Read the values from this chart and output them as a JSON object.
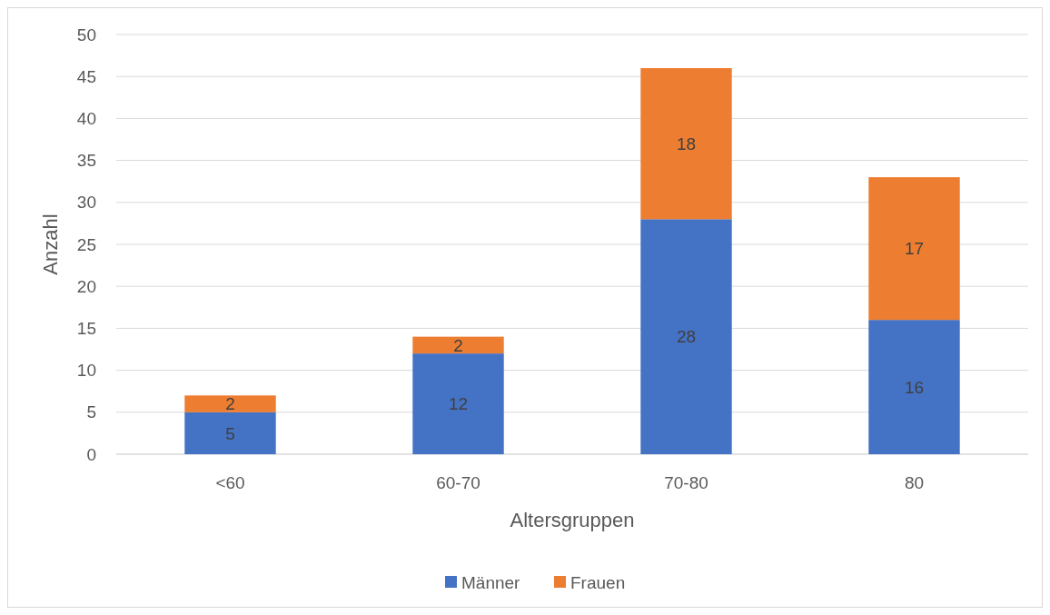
{
  "chart_data": {
    "type": "bar",
    "stacked": true,
    "xlabel": "Altersgruppen",
    "ylabel": "Anzahl",
    "categories": [
      "<60",
      "60-70",
      "70-80",
      "80"
    ],
    "series": [
      {
        "name": "Männer",
        "color": "#4472c4",
        "values": [
          5,
          12,
          28,
          16
        ]
      },
      {
        "name": "Frauen",
        "color": "#ed7d31",
        "values": [
          2,
          2,
          18,
          17
        ]
      }
    ],
    "ylim": [
      0,
      50
    ],
    "yticks": [
      0,
      5,
      10,
      15,
      20,
      25,
      30,
      35,
      40,
      45,
      50
    ],
    "grid": "y",
    "legend": "bottom",
    "data_labels": true
  }
}
